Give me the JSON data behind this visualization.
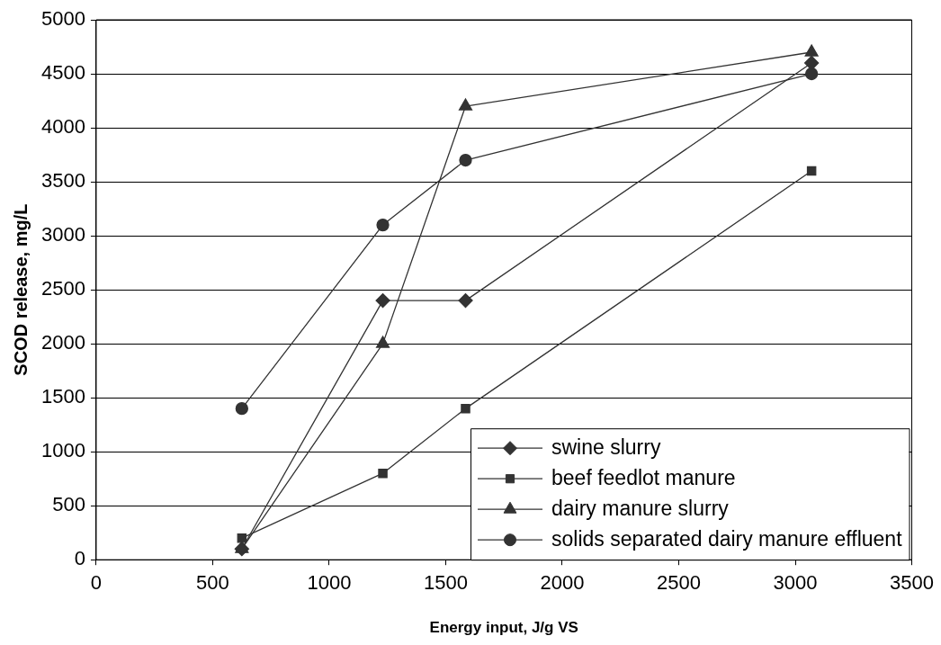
{
  "chart_data": {
    "type": "line",
    "xlabel": "Energy input, J/g VS",
    "ylabel": "SCOD release, mg/L",
    "x": [
      625,
      1230,
      1585,
      3070
    ],
    "series": [
      {
        "name": "swine slurry",
        "color": "#333333",
        "marker": "diamond",
        "values": [
          100,
          2400,
          2400,
          4600
        ]
      },
      {
        "name": "beef feedlot manure",
        "color": "#333333",
        "marker": "square",
        "values": [
          200,
          800,
          1400,
          3600
        ]
      },
      {
        "name": "dairy manure slurry",
        "color": "#333333",
        "marker": "triangle",
        "values": [
          100,
          2000,
          4200,
          4700
        ]
      },
      {
        "name": "solids separated dairy manure effluent",
        "color": "#333333",
        "marker": "circle",
        "values": [
          1400,
          3100,
          3700,
          4500
        ]
      }
    ],
    "xlim": [
      0,
      3500
    ],
    "xticks": [
      0,
      500,
      1000,
      1500,
      2000,
      2500,
      3000,
      3500
    ],
    "ylim": [
      0,
      5000
    ],
    "yticks": [
      0,
      500,
      1000,
      1500,
      2000,
      2500,
      3000,
      3500,
      4000,
      4500,
      5000
    ],
    "grid": "y",
    "legend": "bottom right",
    "line_style": "solid"
  }
}
